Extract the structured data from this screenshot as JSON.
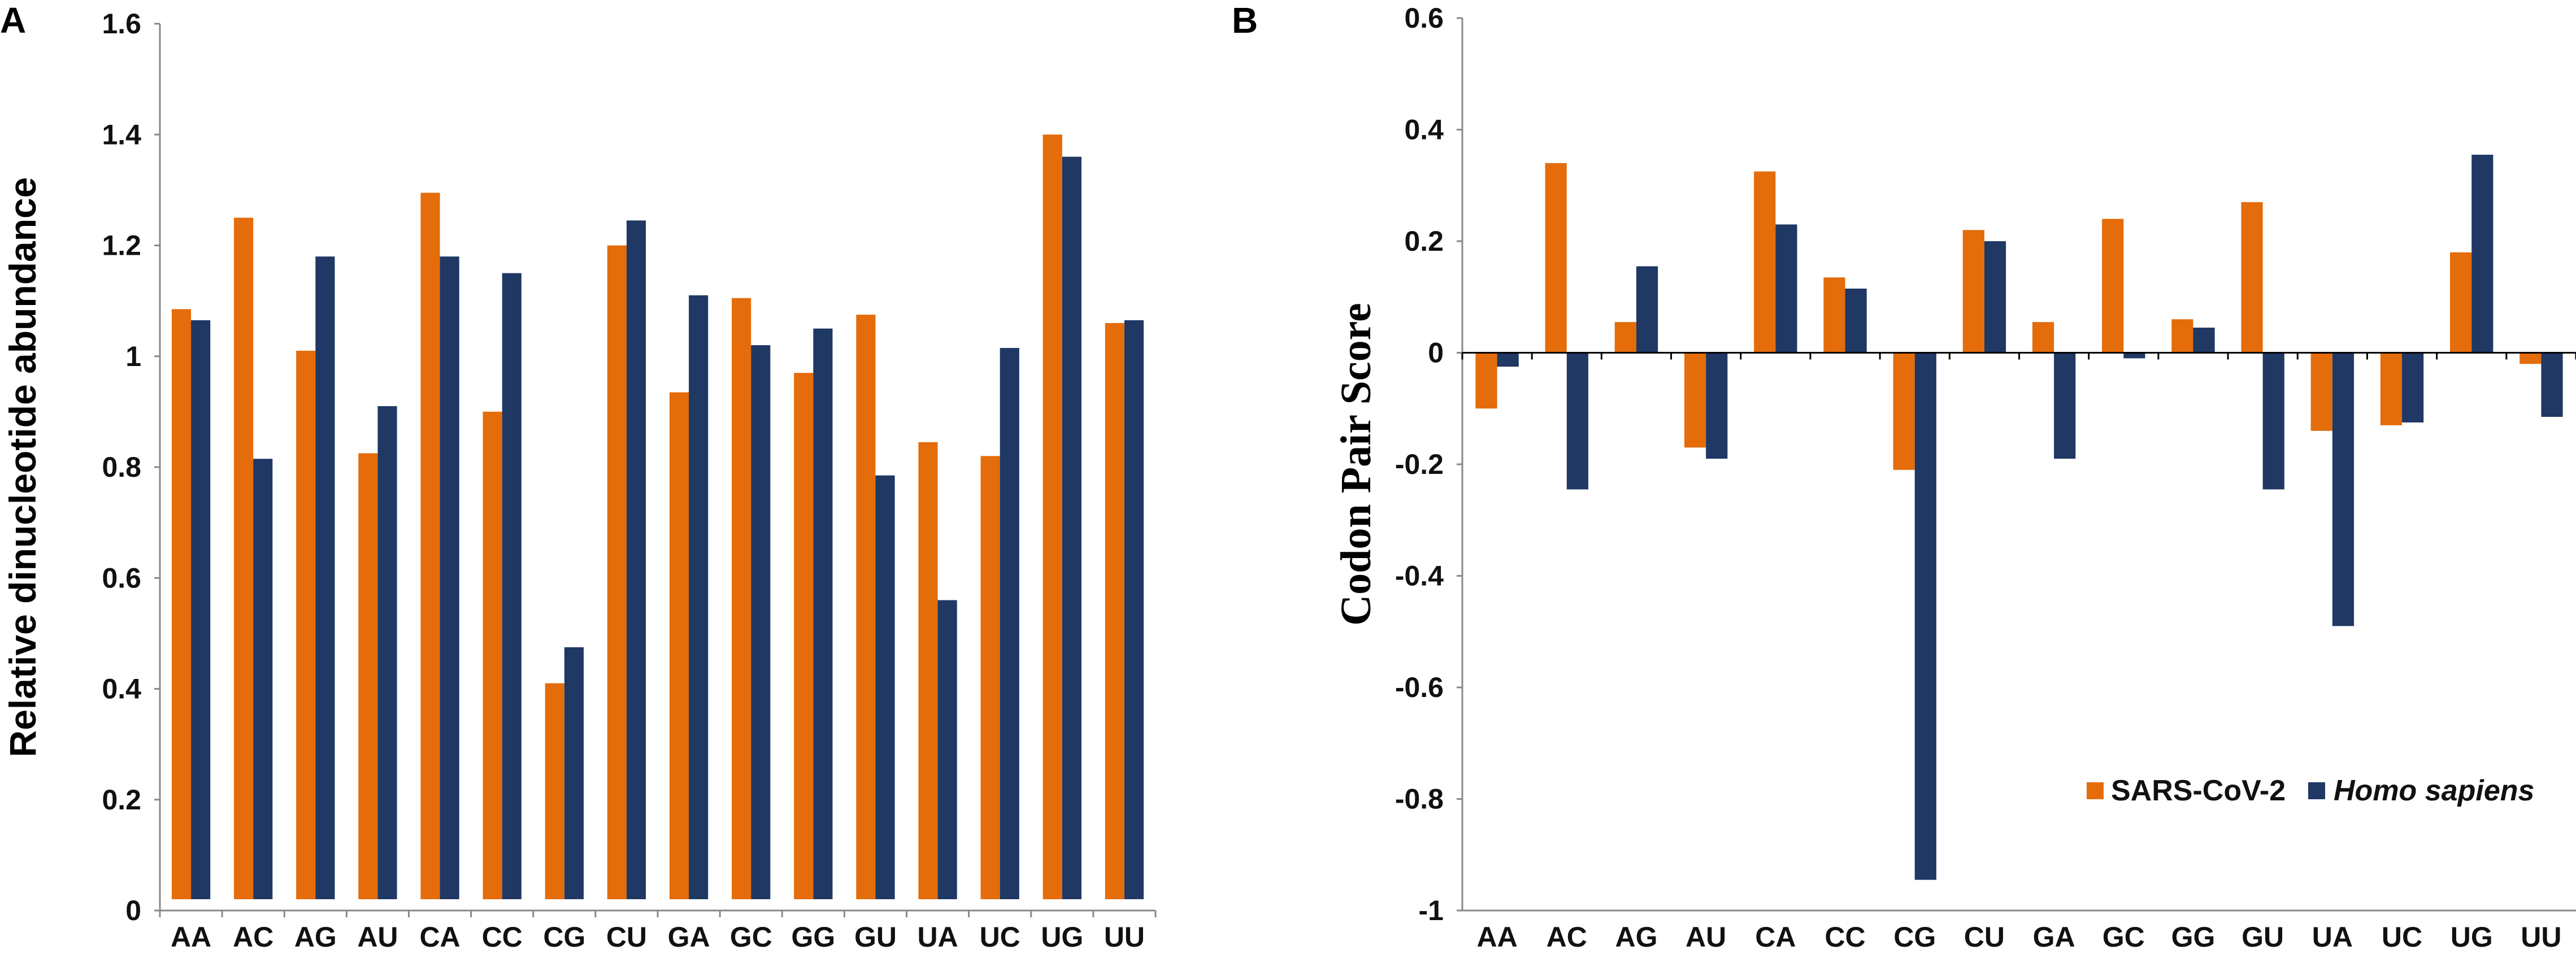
{
  "figure": {
    "panel_labels": [
      "A",
      "B"
    ]
  },
  "colors": {
    "sars": "#E46C0A",
    "homo": "#1F3864",
    "axis": "#888888"
  },
  "legend": {
    "series1": "SARS-CoV-2",
    "series2": "Homo sapiens"
  },
  "chart_data": [
    {
      "panel": "A",
      "type": "bar",
      "title": "",
      "xlabel": "",
      "ylabel": "Relative dinucleotide abundance",
      "ylim": [
        0,
        1.6
      ],
      "yticks": [
        0,
        0.2,
        0.4,
        0.6,
        0.8,
        1,
        1.2,
        1.4,
        1.6
      ],
      "ytick_labels": [
        "0",
        "0.2",
        "0.4",
        "0.6",
        "0.8",
        "1",
        "1.2",
        "1.4",
        "1.6"
      ],
      "categories": [
        "AA",
        "AC",
        "AG",
        "AU",
        "CA",
        "CC",
        "CG",
        "CU",
        "GA",
        "GC",
        "GG",
        "GU",
        "UA",
        "UC",
        "UG",
        "UU"
      ],
      "series": [
        {
          "name": "SARS-CoV-2",
          "values": [
            1.085,
            1.25,
            1.01,
            0.825,
            1.295,
            0.9,
            0.41,
            1.2,
            0.935,
            1.105,
            0.97,
            1.075,
            0.845,
            0.82,
            1.4,
            1.06
          ]
        },
        {
          "name": "Homo sapiens",
          "values": [
            1.065,
            0.815,
            1.18,
            0.91,
            1.18,
            1.15,
            0.475,
            1.245,
            1.11,
            1.02,
            1.05,
            0.785,
            0.56,
            1.015,
            1.36,
            1.065
          ]
        }
      ]
    },
    {
      "panel": "B",
      "type": "bar",
      "title": "",
      "xlabel": "",
      "ylabel": "Codon Pair Score",
      "ylim": [
        -1,
        0.6
      ],
      "yticks": [
        -1,
        -0.8,
        -0.6,
        -0.4,
        -0.2,
        0,
        0.2,
        0.4,
        0.6
      ],
      "ytick_labels": [
        "-1",
        "-0.8",
        "-0.6",
        "-0.4",
        "-0.2",
        "0",
        "0.2",
        "0.4",
        "0.6"
      ],
      "categories": [
        "AA",
        "AC",
        "AG",
        "AU",
        "CA",
        "CC",
        "CG",
        "CU",
        "GA",
        "GC",
        "GG",
        "GU",
        "UA",
        "UC",
        "UG",
        "UU"
      ],
      "legend_position": "bottom-right",
      "series": [
        {
          "name": "SARS-CoV-2",
          "values": [
            -0.1,
            0.34,
            0.055,
            -0.17,
            0.325,
            0.135,
            -0.21,
            0.22,
            0.055,
            0.24,
            0.06,
            0.27,
            -0.14,
            -0.13,
            0.18,
            -0.02
          ]
        },
        {
          "name": "Homo sapiens",
          "values": [
            -0.025,
            -0.245,
            0.155,
            -0.19,
            0.23,
            0.115,
            -0.945,
            0.2,
            -0.19,
            -0.01,
            0.045,
            -0.245,
            -0.49,
            -0.125,
            0.355,
            -0.115
          ]
        }
      ]
    }
  ]
}
